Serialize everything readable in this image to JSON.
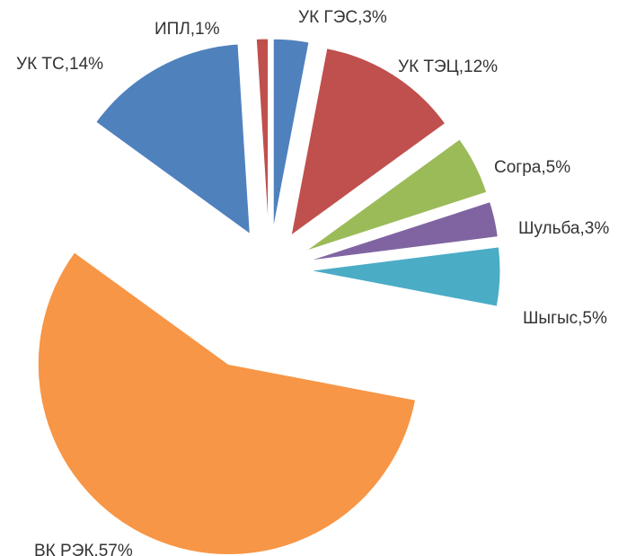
{
  "chart_data": {
    "type": "pie",
    "values": [
      3,
      12,
      5,
      3,
      5,
      57,
      14,
      1
    ],
    "value_labels": [
      "УК ГЭС,3%",
      "УК ТЭЦ,12%",
      "Согра,5%",
      "Шульба,3%",
      "Шыгыс,5%",
      "ВК РЭК,57%",
      "УК ТС,14%",
      "ИПЛ,1%"
    ],
    "colors": [
      "#4f81bd",
      "#c0504d",
      "#9bbb59",
      "#8064a2",
      "#4bacc6",
      "#f79646",
      "#4f81bd",
      "#c0504d"
    ]
  }
}
